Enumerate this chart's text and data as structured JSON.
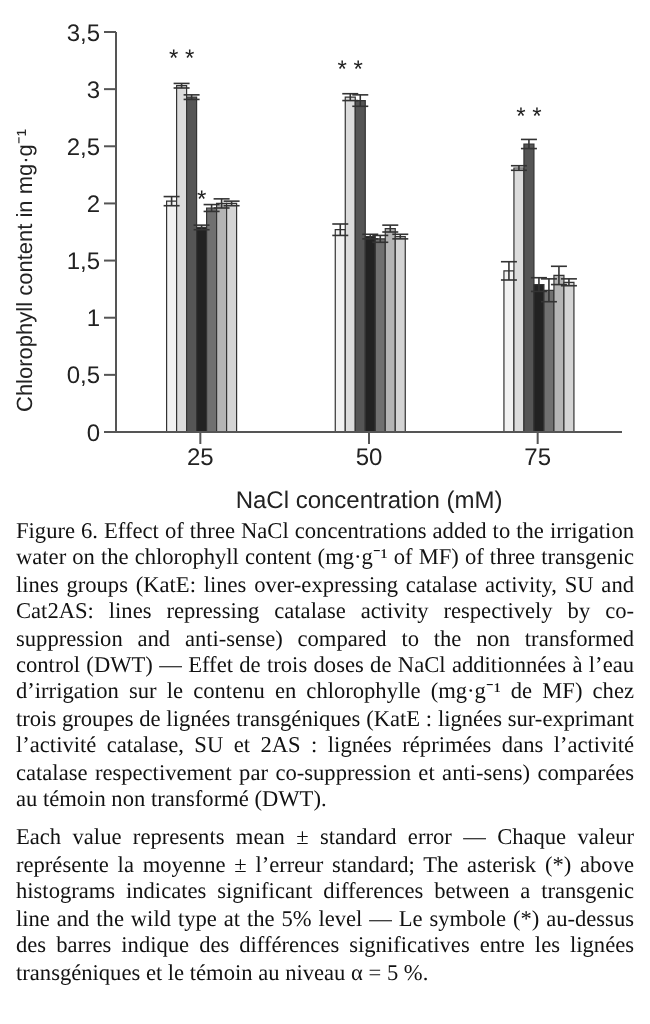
{
  "chart_data": {
    "type": "bar",
    "xlabel": "NaCl concentration (mM)",
    "ylabel": "Chlorophyll content in mg·g⁻¹",
    "categories": [
      "25",
      "50",
      "75"
    ],
    "series": [
      {
        "color": "#f2f2f2",
        "values": [
          2.02,
          1.77,
          1.41
        ],
        "errors": [
          0.04,
          0.05,
          0.08
        ]
      },
      {
        "color": "#dcdcdc",
        "values": [
          3.03,
          2.93,
          2.31
        ],
        "errors": [
          0.02,
          0.03,
          0.02
        ]
      },
      {
        "color": "#555555",
        "values": [
          2.93,
          2.9,
          2.52
        ],
        "errors": [
          0.02,
          0.05,
          0.04
        ]
      },
      {
        "color": "#222222",
        "values": [
          1.79,
          1.71,
          1.29
        ],
        "errors": [
          0.02,
          0.02,
          0.06
        ]
      },
      {
        "color": "#707070",
        "values": [
          1.96,
          1.69,
          1.24
        ],
        "errors": [
          0.03,
          0.03,
          0.1
        ]
      },
      {
        "color": "#b4b4b4",
        "values": [
          2.0,
          1.78,
          1.37
        ],
        "errors": [
          0.04,
          0.03,
          0.08
        ]
      },
      {
        "color": "#d4d4d4",
        "values": [
          2.0,
          1.71,
          1.31
        ],
        "errors": [
          0.02,
          0.02,
          0.03
        ]
      }
    ],
    "ylim": [
      0,
      3.5
    ],
    "yticks": [
      0,
      {
        "value": 0.5,
        "label": "0,5"
      },
      1,
      {
        "value": 1.5,
        "label": "1,5"
      },
      2,
      {
        "value": 2.5,
        "label": "2,5"
      },
      3,
      {
        "value": 3.5,
        "label": "3,5"
      }
    ],
    "grid": false,
    "legend": false,
    "annotations": [
      {
        "text": "* *",
        "x": "25",
        "y": 3.03
      },
      {
        "text": "*",
        "x": "25",
        "y": 1.79
      },
      {
        "text": "* *",
        "x": "50",
        "y": 2.93
      },
      {
        "text": "* *",
        "x": "75",
        "y": 2.52
      },
      "Figure 6. Effect of three NaCl concentrations added to the irrigation water on the chlorophyll content (mg·g⁻¹ of MF) of three transgenic lines groups (KatE: lines over-expressing catalase activity, SU and Cat2AS: lines repressing catalase activity respectively by co-suppression and anti-sense) compared to the non transformed control (DWT) — Effet de trois doses de NaCl additionnées à l’eau d’irrigation sur le contenu en chlorophylle (mg·g⁻¹ de MF) chez trois groupes de lignées transgéniques (KatE : lignées sur-exprimant l’activité catalase, SU et 2AS : lignées réprimées dans l’activité catalase respectivement par co-suppression et anti-sens) comparées au témoin non transformé (DWT).",
      "Each value represents mean ± standard error — Chaque valeur représente la moyenne ± l’erreur standard; The asterisk (*) above histograms indicates significant differences between a transgenic line and the wild type at the 5% level — Le symbole (*) au-dessus des barres indique des différences significatives entre les lignées transgéniques et le témoin au niveau α = 5 %."
    ]
  }
}
